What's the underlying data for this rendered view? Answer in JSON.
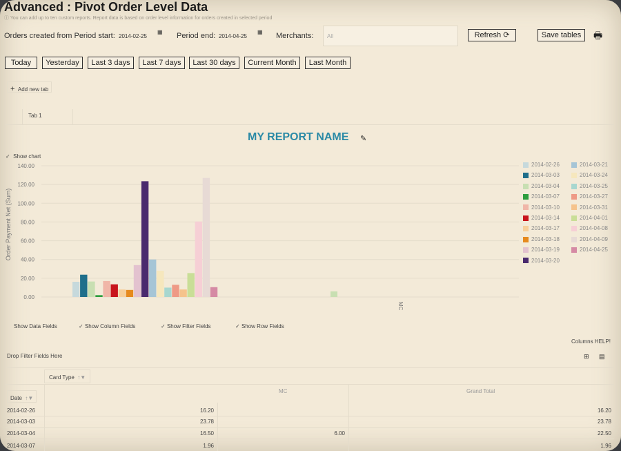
{
  "header": {
    "title": "Advanced : Pivot Order Level Data",
    "subtitle": "ⓘ You can add up to ten custom reports. Report data is based on order level information for orders created in selected period"
  },
  "filters": {
    "period_start_label": "Orders created from Period start:",
    "period_start_value": "2014-02-25",
    "period_end_label": "Period end:",
    "period_end_value": "2014-04-25",
    "merchants_label": "Merchants:",
    "merchants_value": "All",
    "refresh_label": "Refresh",
    "save_label": "Save tables"
  },
  "quick_ranges": [
    "Today",
    "Yesterday",
    "Last 3 days",
    "Last 7 days",
    "Last 30 days",
    "Current Month",
    "Last Month"
  ],
  "tabs": {
    "add_label": "Add new tab",
    "items": [
      "Tab 1"
    ]
  },
  "report": {
    "name": "MY REPORT NAME",
    "show_chart_label": "Show chart"
  },
  "chart_data": {
    "type": "bar",
    "ylabel": "Order Payment Net (Sum)",
    "xlabel": "MC",
    "ylim": [
      0,
      140
    ],
    "yticks": [
      "0.00",
      "20.00",
      "40.00",
      "60.00",
      "80.00",
      "100.00",
      "120.00",
      "140.00"
    ],
    "categories": [
      "MC"
    ],
    "series": [
      {
        "name": "2014-02-26",
        "value": 16.2,
        "color": "#c6d9dc"
      },
      {
        "name": "2014-03-03",
        "value": 23.78,
        "color": "#1f6f8b"
      },
      {
        "name": "2014-03-04",
        "value": 16.5,
        "color": "#c8dfb2"
      },
      {
        "name": "2014-03-07",
        "value": 1.96,
        "color": "#2e9e3e"
      },
      {
        "name": "2014-03-10",
        "value": 17.0,
        "color": "#f0b6a8"
      },
      {
        "name": "2014-03-14",
        "value": 13.5,
        "color": "#c8141c"
      },
      {
        "name": "2014-03-17",
        "value": 8.0,
        "color": "#f7cf9a"
      },
      {
        "name": "2014-03-18",
        "value": 7.5,
        "color": "#e68a1e"
      },
      {
        "name": "2014-03-19",
        "value": 34.0,
        "color": "#e3c2cf"
      },
      {
        "name": "2014-03-20",
        "value": 123.5,
        "color": "#4a2a6e"
      },
      {
        "name": "2014-03-21",
        "value": 40.0,
        "color": "#a6c5d6"
      },
      {
        "name": "2014-03-24",
        "value": 28.0,
        "color": "#f6e7bd"
      },
      {
        "name": "2014-03-25",
        "value": 10.0,
        "color": "#a8d7cf"
      },
      {
        "name": "2014-03-27",
        "value": 13.0,
        "color": "#ee9a86"
      },
      {
        "name": "2014-03-31",
        "value": 8.0,
        "color": "#f5c38c"
      },
      {
        "name": "2014-04-01",
        "value": 25.5,
        "color": "#c9de97"
      },
      {
        "name": "2014-04-08",
        "value": 80.5,
        "color": "#f6cfd5"
      },
      {
        "name": "2014-04-09",
        "value": 127.0,
        "color": "#e7dad5"
      },
      {
        "name": "2014-04-25",
        "value": 10.5,
        "color": "#d58aa4"
      }
    ],
    "extra_bar": {
      "value": 6.0,
      "color": "#c8dfb2"
    }
  },
  "field_toggles": [
    "Show Data Fields",
    "Show Column Fields",
    "Show Filter Fields",
    "Show Row Fields"
  ],
  "pivot": {
    "columns_help": "Columns HELP!",
    "drop_filter": "Drop Filter Fields Here",
    "column_field": "Card Type",
    "row_field": "Date",
    "col_header_mc": "MC",
    "col_header_total": "Grand Total",
    "rows": [
      {
        "date": "2014-02-26",
        "mc": "16.20",
        "extra": "",
        "total": "16.20"
      },
      {
        "date": "2014-03-03",
        "mc": "23.78",
        "extra": "",
        "total": "23.78"
      },
      {
        "date": "2014-03-04",
        "mc": "16.50",
        "extra": "6.00",
        "total": "22.50"
      },
      {
        "date": "2014-03-07",
        "mc": "1.96",
        "extra": "",
        "total": "1.96"
      }
    ]
  }
}
